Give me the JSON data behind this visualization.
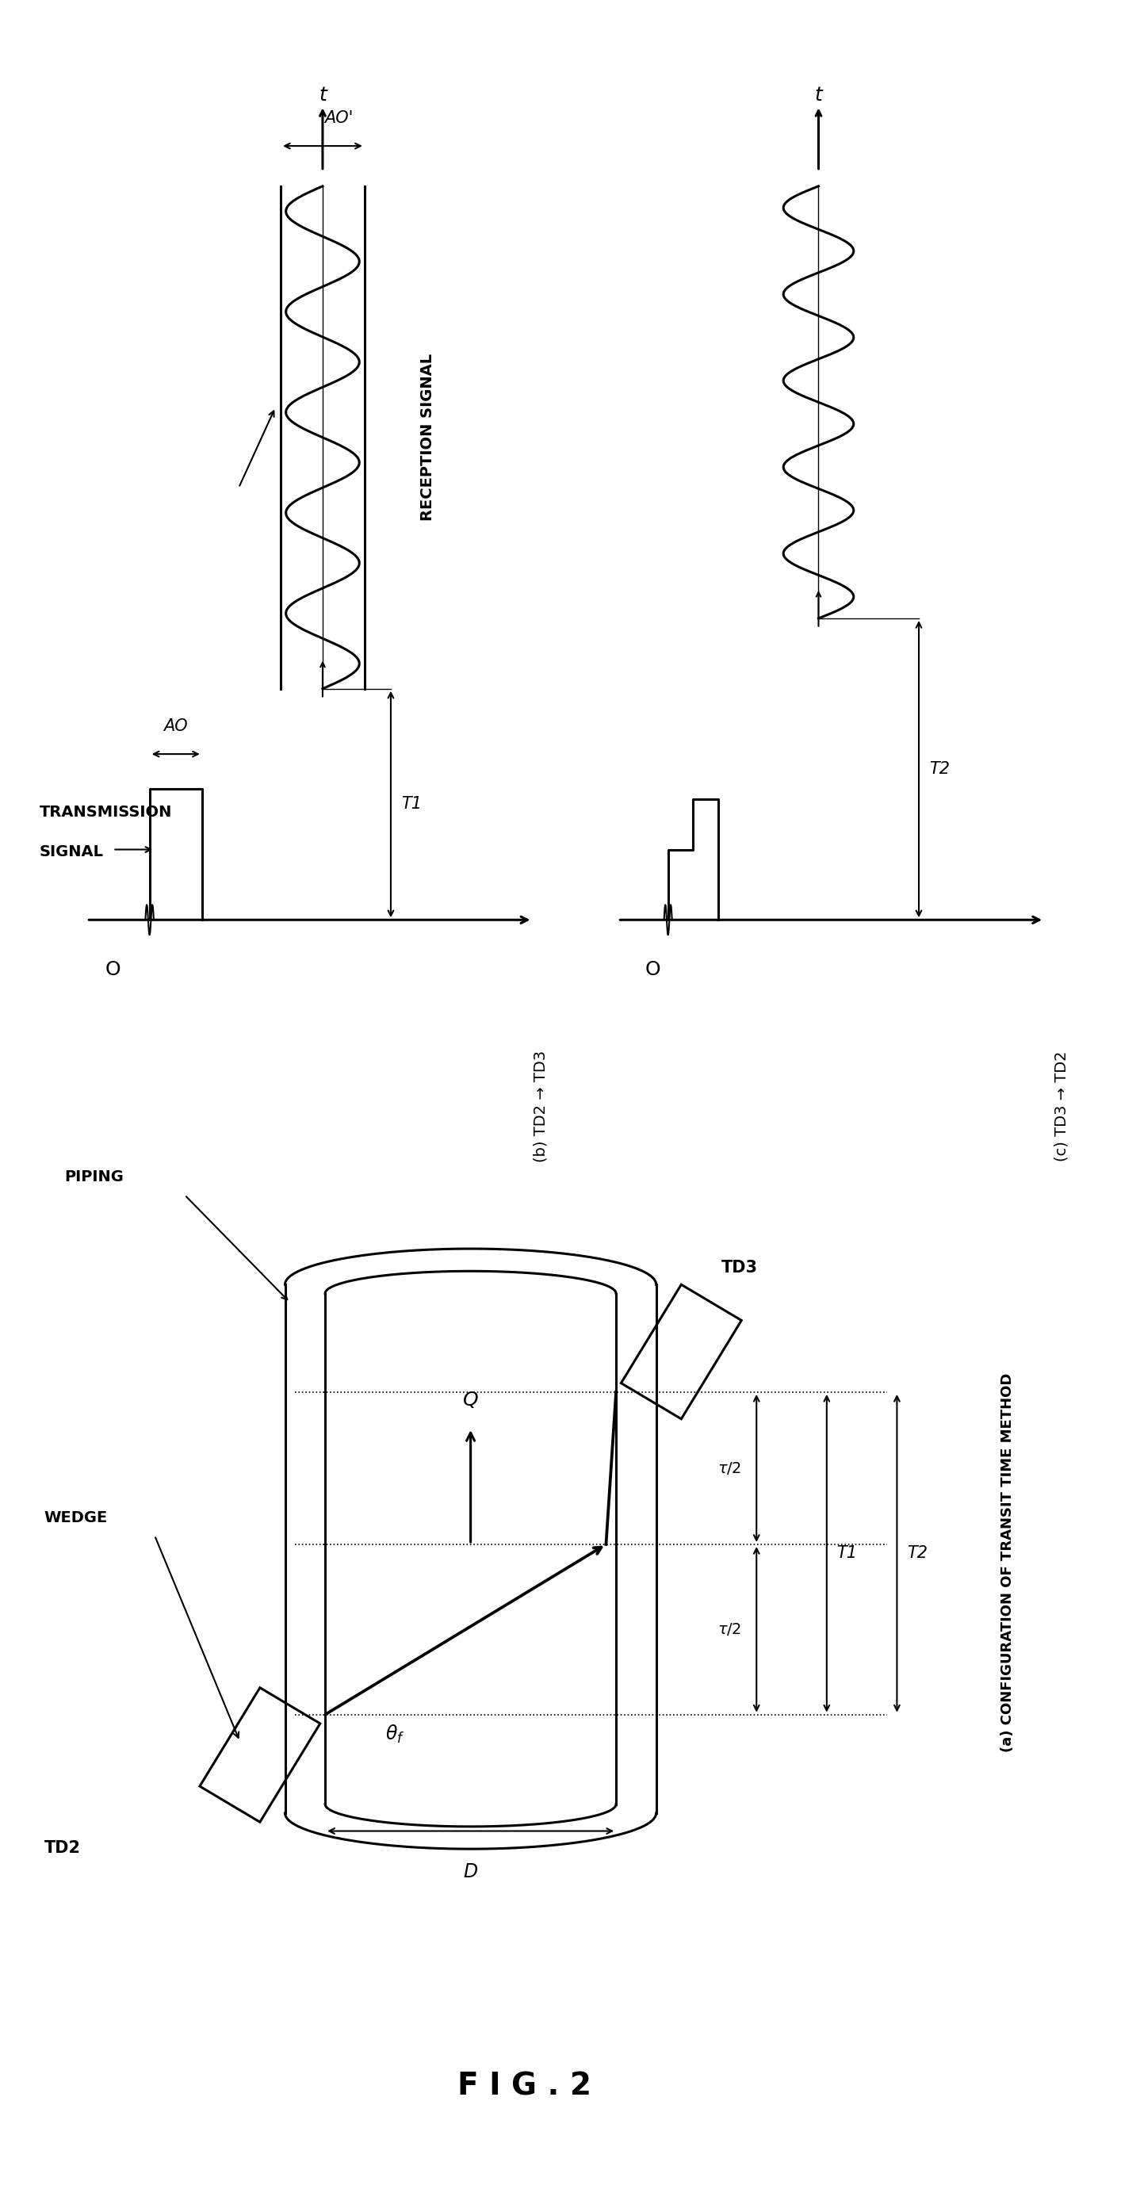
{
  "fig_title": "F I G . 2",
  "bg_color": "#ffffff",
  "line_color": "#000000",
  "label_a": "(a) CONFIGURATION OF TRANSIT TIME METHOD",
  "label_b": "(b) TD2 → TD3",
  "label_c": "(c) TD3 → TD2"
}
